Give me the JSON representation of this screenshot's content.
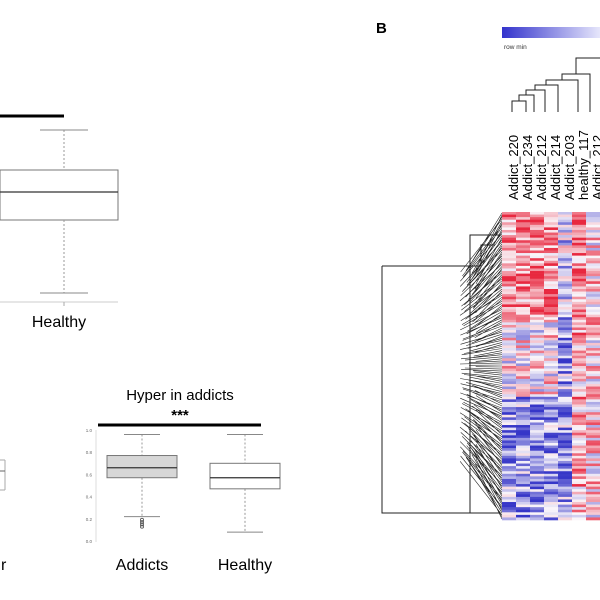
{
  "panel_a": {
    "top_plot": {
      "xlabel_healthy": "Healthy"
    },
    "bottom_left_plot": {
      "xlabel_fragment": "r"
    },
    "bottom_right_plot": {
      "title": "Hyper in addicts",
      "significance": "***",
      "xlabels": [
        "Addicts",
        "Healthy"
      ],
      "ytick_labels": [
        "1.0",
        "0.8",
        "0.6",
        "0.4",
        "0.2",
        "0.0"
      ]
    }
  },
  "panel_b": {
    "label": "B",
    "colorbar_min_label": "row min",
    "sample_labels": [
      "Addict_220",
      "Addict_234",
      "Addict_212",
      "Addict_214",
      "Addict_203",
      "healthy_117",
      "Addict_212"
    ],
    "colors": {
      "high": "#e8283f",
      "low": "#3636c8",
      "mid": "#ffffff"
    }
  },
  "chart_data": [
    {
      "type": "box",
      "title": "Hyper in addicts",
      "categories": [
        "Addicts",
        "Healthy"
      ],
      "ylim": [
        0,
        1.0
      ],
      "boxes": [
        {
          "name": "Addicts",
          "whisker_low": 0.22,
          "q1": 0.57,
          "median": 0.66,
          "q3": 0.77,
          "whisker_high": 0.96,
          "outliers": [
            0.19,
            0.17,
            0.15,
            0.13
          ]
        },
        {
          "name": "Healthy",
          "whisker_low": 0.08,
          "q1": 0.47,
          "median": 0.57,
          "q3": 0.7,
          "whisker_high": 0.96,
          "outliers": []
        }
      ],
      "fill_colors": [
        "#d7d7d7",
        "#ffffff"
      ]
    }
  ]
}
